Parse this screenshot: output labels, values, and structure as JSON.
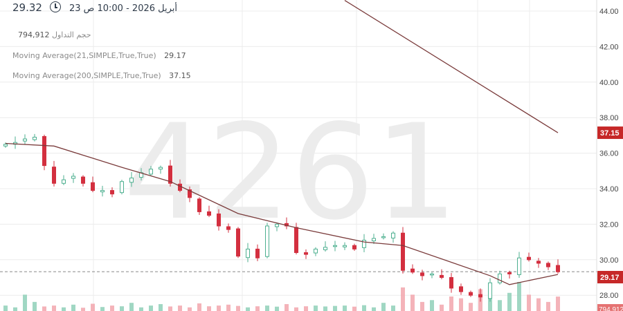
{
  "header": {
    "last_price": "29.32",
    "clock_icon": "clock-icon",
    "datetime": "أبريل 2026 - 10:00 ص 23",
    "volume_label": "حجم التداول",
    "volume_value": "794,912",
    "ma21_label": "Moving Average(21,SIMPLE,True,True)",
    "ma21_value": "29.17",
    "ma200_label": "Moving Average(200,SIMPLE,True,True)",
    "ma200_value": "37.15"
  },
  "watermark": "4261",
  "chart_data": {
    "type": "candlestick",
    "y_axis": {
      "position": "right",
      "ylim": [
        27.4,
        44.6
      ],
      "ticks": [
        "28.00",
        "30.00",
        "32.00",
        "34.00",
        "36.00",
        "38.00",
        "40.00",
        "42.00",
        "44.00"
      ]
    },
    "grid": true,
    "closes": [
      36.5,
      36.6,
      36.8,
      36.9,
      35.3,
      34.3,
      34.5,
      34.7,
      34.3,
      33.9,
      33.9,
      33.7,
      34.4,
      34.6,
      34.9,
      35.1,
      35.2,
      34.3,
      33.9,
      33.5,
      32.7,
      32.5,
      31.9,
      31.7,
      30.2,
      30.6,
      30.1,
      31.9,
      32.0,
      31.9,
      30.4,
      30.3,
      30.6,
      30.7,
      30.8,
      30.8,
      30.6,
      31.1,
      31.2,
      31.3,
      31.5,
      29.4,
      29.3,
      29.1,
      29.2,
      29.0,
      28.4,
      28.2,
      28.0,
      27.9,
      28.7,
      29.2,
      29.2,
      30.1,
      30.0,
      29.8,
      29.6,
      29.32
    ],
    "volumes": [
      300,
      200,
      900,
      500,
      250,
      300,
      200,
      350,
      180,
      400,
      220,
      300,
      260,
      450,
      200,
      300,
      380,
      250,
      300,
      200,
      420,
      260,
      300,
      350,
      280,
      200,
      260,
      300,
      240,
      380,
      200,
      260,
      300,
      250,
      280,
      300,
      240,
      320,
      200,
      450,
      300,
      1300,
      900,
      500,
      600,
      350,
      800,
      700,
      450,
      1200,
      1500,
      600,
      1000,
      1600,
      900,
      700,
      500,
      794.912
    ],
    "volume_unit": "thousands",
    "ma21": [
      [
        0,
        36.55
      ],
      [
        5,
        36.4
      ],
      [
        12,
        35.2
      ],
      [
        17,
        34.4
      ],
      [
        24,
        32.6
      ],
      [
        30,
        31.8
      ],
      [
        37,
        31.0
      ],
      [
        41,
        30.8
      ],
      [
        50,
        29.1
      ],
      [
        52,
        28.6
      ],
      [
        57,
        29.17
      ]
    ],
    "ma200": [
      [
        35,
        44.6
      ],
      [
        57,
        37.15
      ]
    ],
    "last_ma21_label": "29.17",
    "last_ma200_label": "37.15",
    "last_volume_label": "794,912",
    "up_color": "#4caf8f",
    "down_color": "#d32f3f",
    "ma_color": "#7a3b3b"
  }
}
